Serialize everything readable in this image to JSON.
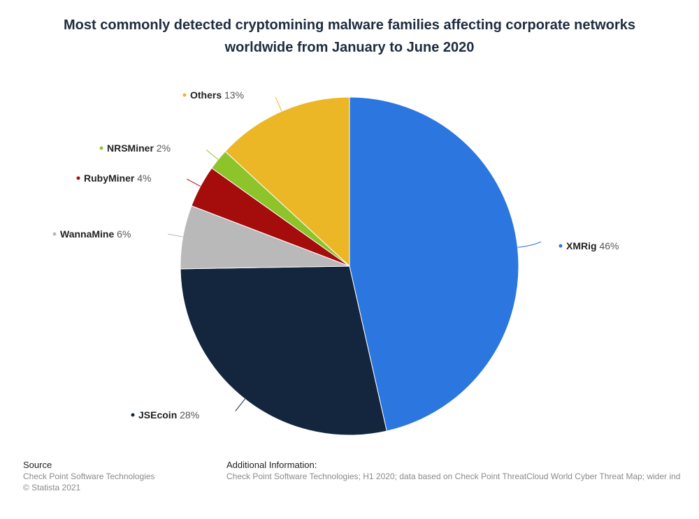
{
  "chart_data": {
    "type": "pie",
    "title": "Most commonly detected cryptomining malware families affecting corporate networks worldwide from January to June 2020",
    "title_lines": [
      "Most commonly detected cryptomining malware families affecting corporate networks",
      "worldwide from January to June 2020"
    ],
    "unit": "%",
    "slices": [
      {
        "label": "XMRig",
        "value": 46,
        "color": "#2b76df"
      },
      {
        "label": "JSEcoin",
        "value": 28,
        "color": "#14263e"
      },
      {
        "label": "WannaMine",
        "value": 6,
        "color": "#b9b9b9"
      },
      {
        "label": "RubyMiner",
        "value": 4,
        "color": "#a50c0c"
      },
      {
        "label": "NRSMiner",
        "value": 2,
        "color": "#8cc42a"
      },
      {
        "label": "Others",
        "value": 13,
        "color": "#ebb727"
      }
    ]
  },
  "footer": {
    "source_heading": "Source",
    "source_line1": "Check Point Software Technologies",
    "source_line2": "© Statista 2021",
    "info_heading": "Additional Information:",
    "info_text": "Check Point Software Technologies; H1 2020; data based on Check Point ThreatCloud World Cyber Threat Map; wider ind"
  }
}
